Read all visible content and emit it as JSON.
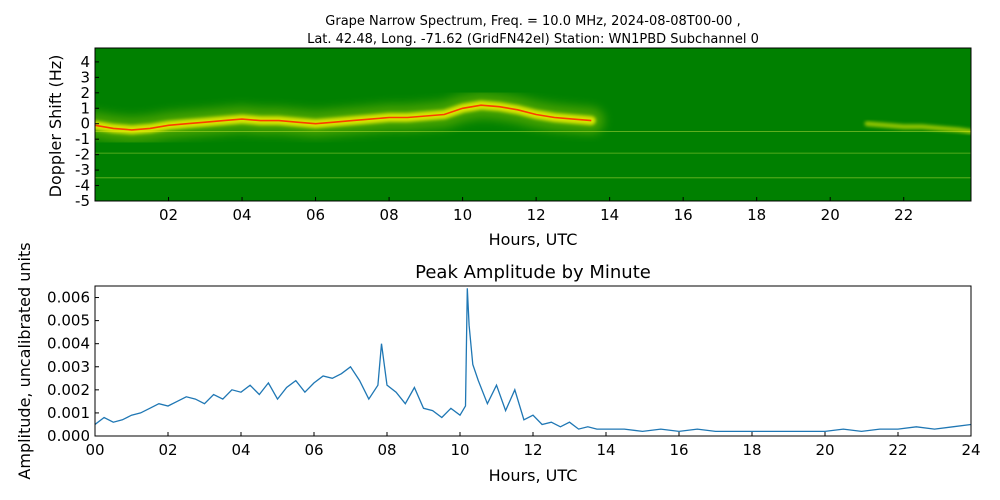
{
  "chart_data": [
    {
      "type": "heatmap",
      "title_line1": "Grape Narrow Spectrum, Freq. = 10.0 MHz, 2024-08-08T00-00 ,",
      "title_line2": "Lat.  42.48, Long. -71.62 (GridFN42el) Station: WN1PBD Subchannel 0",
      "xlabel": "Hours, UTC",
      "ylabel": "Doppler Shift (Hz)",
      "xlim": [
        0,
        23.83
      ],
      "ylim": [
        -5,
        4.9
      ],
      "x_ticks": [
        "02",
        "04",
        "06",
        "08",
        "10",
        "12",
        "14",
        "16",
        "18",
        "20",
        "22"
      ],
      "x_tick_values": [
        2,
        4,
        6,
        8,
        10,
        12,
        14,
        16,
        18,
        20,
        22
      ],
      "y_ticks": [
        "4",
        "3",
        "2",
        "1",
        "0",
        "-1",
        "-2",
        "-3",
        "-4",
        "-5"
      ],
      "y_tick_values": [
        4,
        3,
        2,
        1,
        0,
        -1,
        -2,
        -3,
        -4,
        -5
      ],
      "background_color": "#008000",
      "signal_color": "#f0f000",
      "peak_color": "#ff2a00",
      "doppler_trace": {
        "x": [
          0,
          0.5,
          1,
          1.5,
          2,
          2.5,
          3,
          3.5,
          4,
          4.5,
          5,
          5.5,
          6,
          6.5,
          7,
          7.5,
          8,
          8.5,
          9,
          9.5,
          10,
          10.5,
          11,
          11.5,
          12,
          12.5,
          13,
          13.5
        ],
        "y": [
          -0.1,
          -0.3,
          -0.4,
          -0.3,
          -0.1,
          0.0,
          0.1,
          0.2,
          0.3,
          0.2,
          0.2,
          0.1,
          0.0,
          0.1,
          0.2,
          0.3,
          0.4,
          0.4,
          0.5,
          0.6,
          1.0,
          1.2,
          1.1,
          0.9,
          0.6,
          0.4,
          0.3,
          0.2
        ]
      },
      "late_trace": {
        "x": [
          21.0,
          21.5,
          22.0,
          22.5,
          23.0,
          23.5,
          23.83
        ],
        "y": [
          0.0,
          -0.1,
          -0.2,
          -0.2,
          -0.3,
          -0.4,
          -0.5
        ]
      },
      "carrier_lines_hz": [
        -0.5,
        -1.9,
        -3.5
      ]
    },
    {
      "type": "line",
      "title": "Peak Amplitude by Minute",
      "xlabel": "Hours, UTC",
      "ylabel": "Amplitude, uncalibrated units",
      "xlim": [
        0,
        24
      ],
      "ylim": [
        0,
        0.0065
      ],
      "x_ticks": [
        "00",
        "02",
        "04",
        "06",
        "08",
        "10",
        "12",
        "14",
        "16",
        "18",
        "20",
        "22",
        "24"
      ],
      "x_tick_values": [
        0,
        2,
        4,
        6,
        8,
        10,
        12,
        14,
        16,
        18,
        20,
        22,
        24
      ],
      "y_ticks": [
        "0.000",
        "0.001",
        "0.002",
        "0.003",
        "0.004",
        "0.005",
        "0.006"
      ],
      "y_tick_values": [
        0,
        0.001,
        0.002,
        0.003,
        0.004,
        0.005,
        0.006
      ],
      "line_color": "#1f77b4",
      "x": [
        0,
        0.25,
        0.5,
        0.75,
        1,
        1.25,
        1.5,
        1.75,
        2,
        2.25,
        2.5,
        2.75,
        3,
        3.25,
        3.5,
        3.75,
        4,
        4.25,
        4.5,
        4.75,
        5,
        5.25,
        5.5,
        5.75,
        6,
        6.25,
        6.5,
        6.75,
        7,
        7.25,
        7.5,
        7.75,
        7.85,
        8,
        8.25,
        8.5,
        8.75,
        9,
        9.25,
        9.5,
        9.75,
        10,
        10.15,
        10.2,
        10.25,
        10.35,
        10.5,
        10.75,
        11,
        11.25,
        11.5,
        11.75,
        12,
        12.25,
        12.5,
        12.75,
        13,
        13.25,
        13.5,
        13.75,
        14,
        14.5,
        15,
        15.5,
        16,
        16.5,
        17,
        17.5,
        18,
        18.5,
        19,
        19.5,
        20,
        20.5,
        21,
        21.5,
        22,
        22.5,
        23,
        23.5,
        24
      ],
      "y": [
        0.0005,
        0.0008,
        0.0006,
        0.0007,
        0.0009,
        0.001,
        0.0012,
        0.0014,
        0.0013,
        0.0015,
        0.0017,
        0.0016,
        0.0014,
        0.0018,
        0.0016,
        0.002,
        0.0019,
        0.0022,
        0.0018,
        0.0023,
        0.0016,
        0.0021,
        0.0024,
        0.0019,
        0.0023,
        0.0026,
        0.0025,
        0.0027,
        0.003,
        0.0024,
        0.0016,
        0.0022,
        0.004,
        0.0022,
        0.0019,
        0.0014,
        0.0021,
        0.0012,
        0.0011,
        0.0008,
        0.0012,
        0.0009,
        0.0013,
        0.0064,
        0.0048,
        0.0031,
        0.0024,
        0.0014,
        0.0022,
        0.0011,
        0.002,
        0.0007,
        0.0009,
        0.0005,
        0.0006,
        0.0004,
        0.0006,
        0.0003,
        0.0004,
        0.0003,
        0.0003,
        0.0003,
        0.0002,
        0.0003,
        0.0002,
        0.0003,
        0.0002,
        0.0002,
        0.0002,
        0.0002,
        0.0002,
        0.0002,
        0.0002,
        0.0003,
        0.0002,
        0.0003,
        0.0003,
        0.0004,
        0.0003,
        0.0004,
        0.0005
      ]
    }
  ]
}
